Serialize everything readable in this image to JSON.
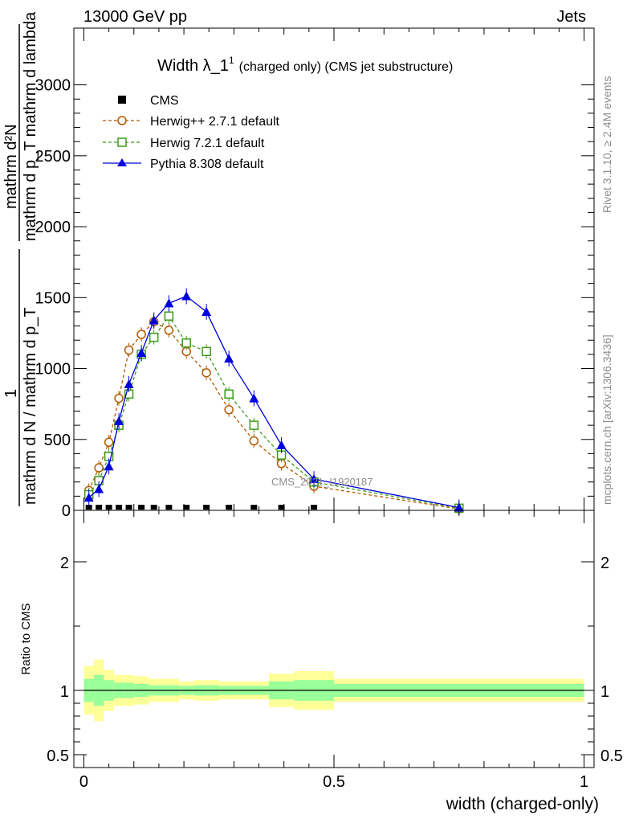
{
  "header": {
    "left": "13000 GeV pp",
    "right": "Jets"
  },
  "side_labels": {
    "rivet": "Rivet 3.1.10, ≥ 2.4M events",
    "mcplots": "mcplots.cern.ch [arXiv:1306.3436]"
  },
  "watermark": "CMS_2021_I1920187",
  "colors": {
    "cms": "#000000",
    "herwigpp": "#b35900",
    "herwig7": "#3d9b1a",
    "pythia": "#0000dd",
    "band_yellow": "#ffff99",
    "band_green": "#99ff99"
  },
  "chart_data": [
    {
      "type": "line",
      "title_main": "Width λ_1",
      "title_sup": "1",
      "title_sub": "(charged only) (CMS jet substructure)",
      "ylabel_num": "1",
      "ylabel_den": "mathrm d N / mathrm d p_T",
      "ylabel_num2": "mathrm d²N",
      "ylabel_den2": "mathrm d p_T mathrm d lambda",
      "ylim": [
        0,
        3400
      ],
      "yticks": [
        0,
        500,
        1000,
        1500,
        2000,
        2500,
        3000
      ],
      "ytick_labels": [
        "0",
        "500",
        "1000",
        "1500",
        "2000",
        "2500",
        "3000"
      ],
      "xlim": [
        -0.02,
        1.02
      ],
      "legend_position": "top-left",
      "series": [
        {
          "name": "CMS",
          "marker": "square",
          "x": [
            0.01,
            0.03,
            0.05,
            0.07,
            0.09,
            0.115,
            0.14,
            0.17,
            0.205,
            0.245,
            0.29,
            0.34,
            0.395,
            0.46
          ],
          "values": [
            5,
            5,
            5,
            5,
            5,
            5,
            5,
            5,
            5,
            5,
            5,
            5,
            5,
            5
          ]
        },
        {
          "name": "Herwig++ 2.7.1 default",
          "marker": "circle",
          "x": [
            0.01,
            0.03,
            0.05,
            0.07,
            0.09,
            0.115,
            0.14,
            0.17,
            0.205,
            0.245,
            0.29,
            0.34,
            0.395,
            0.46,
            0.75
          ],
          "values": [
            140,
            300,
            480,
            790,
            1130,
            1240,
            1330,
            1270,
            1120,
            970,
            710,
            490,
            330,
            170,
            10
          ]
        },
        {
          "name": "Herwig 7.2.1 default",
          "marker": "open-square",
          "x": [
            0.01,
            0.03,
            0.05,
            0.07,
            0.09,
            0.115,
            0.14,
            0.17,
            0.205,
            0.245,
            0.29,
            0.34,
            0.395,
            0.46,
            0.75
          ],
          "values": [
            110,
            210,
            380,
            600,
            820,
            1100,
            1220,
            1370,
            1180,
            1120,
            820,
            600,
            390,
            200,
            15
          ]
        },
        {
          "name": "Pythia 8.308 default",
          "marker": "triangle",
          "x": [
            0.01,
            0.03,
            0.05,
            0.07,
            0.09,
            0.115,
            0.14,
            0.17,
            0.205,
            0.245,
            0.29,
            0.34,
            0.395,
            0.46,
            0.75
          ],
          "values": [
            90,
            150,
            310,
            630,
            890,
            1110,
            1340,
            1460,
            1510,
            1400,
            1070,
            790,
            460,
            220,
            20
          ]
        }
      ]
    },
    {
      "type": "area",
      "ylabel": "Ratio to CMS",
      "xlabel": "width (charged-only)",
      "ylim": [
        0.4,
        2.4
      ],
      "yticks": [
        0.5,
        1,
        2
      ],
      "ytick_labels": [
        "0.5",
        "1",
        "2"
      ],
      "xticks": [
        0,
        0.5,
        1
      ],
      "xtick_labels": [
        "0",
        "0.5",
        "1"
      ],
      "xlim": [
        -0.02,
        1.02
      ],
      "bins": [
        0,
        0.02,
        0.04,
        0.06,
        0.08,
        0.1,
        0.13,
        0.15,
        0.19,
        0.22,
        0.27,
        0.31,
        0.37,
        0.42,
        0.5,
        1.0
      ],
      "band_outer": [
        0.19,
        0.24,
        0.16,
        0.12,
        0.12,
        0.11,
        0.09,
        0.09,
        0.07,
        0.08,
        0.07,
        0.07,
        0.13,
        0.15,
        0.09
      ],
      "band_inner": [
        0.09,
        0.12,
        0.08,
        0.06,
        0.06,
        0.05,
        0.04,
        0.04,
        0.035,
        0.04,
        0.035,
        0.035,
        0.07,
        0.08,
        0.05
      ],
      "reference": 1
    }
  ]
}
